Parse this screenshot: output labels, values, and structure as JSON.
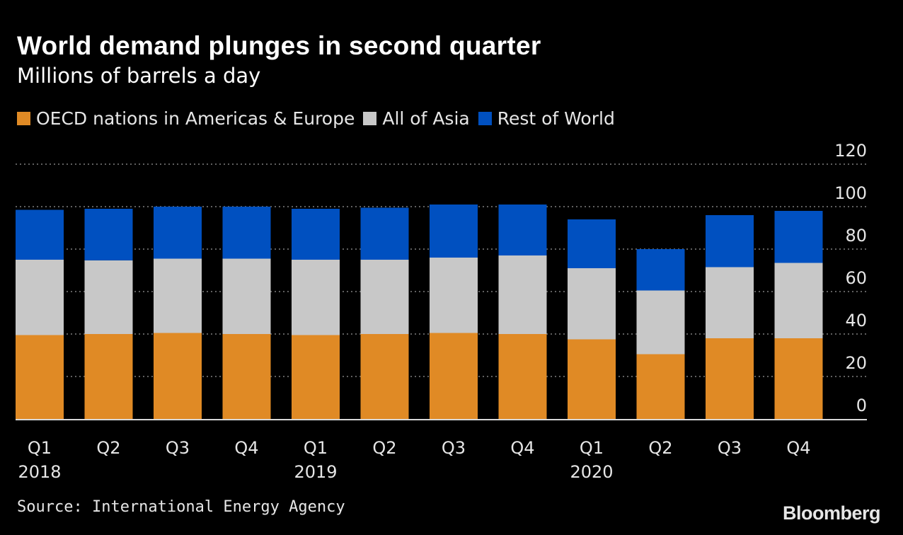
{
  "source": "Source: International Energy Agency",
  "brand": "Bloomberg",
  "chart_data": {
    "type": "bar",
    "stacked": true,
    "title": "World demand plunges in second quarter",
    "subtitle": "Millions of barrels a day",
    "categories": [
      "Q1",
      "Q2",
      "Q3",
      "Q4",
      "Q1",
      "Q2",
      "Q3",
      "Q4",
      "Q1",
      "Q2",
      "Q3",
      "Q4"
    ],
    "year_labels": [
      "2018",
      "",
      "",
      "",
      "2019",
      "",
      "",
      "",
      "2020",
      "",
      "",
      ""
    ],
    "series": [
      {
        "name": "OECD nations in Americas & Europe",
        "color": "#e08a25",
        "values": [
          39.5,
          40.0,
          40.5,
          40.0,
          39.5,
          40.0,
          40.5,
          40.0,
          37.5,
          30.5,
          38.0,
          38.0
        ]
      },
      {
        "name": "All of Asia",
        "color": "#c8c8c8",
        "values": [
          35.5,
          34.7,
          35.0,
          35.5,
          35.5,
          35.0,
          35.5,
          37.0,
          33.5,
          30.0,
          33.5,
          35.5
        ]
      },
      {
        "name": "Rest of World",
        "color": "#0050c0",
        "values": [
          23.5,
          24.3,
          24.5,
          24.5,
          24.0,
          24.5,
          25.0,
          24.0,
          23.0,
          19.5,
          24.5,
          24.5
        ]
      }
    ],
    "ylim": [
      0,
      120
    ],
    "yticks": [
      0,
      20,
      40,
      60,
      80,
      100,
      120
    ],
    "y_axis_position": "right",
    "grid": true,
    "legend_position": "top-left"
  }
}
